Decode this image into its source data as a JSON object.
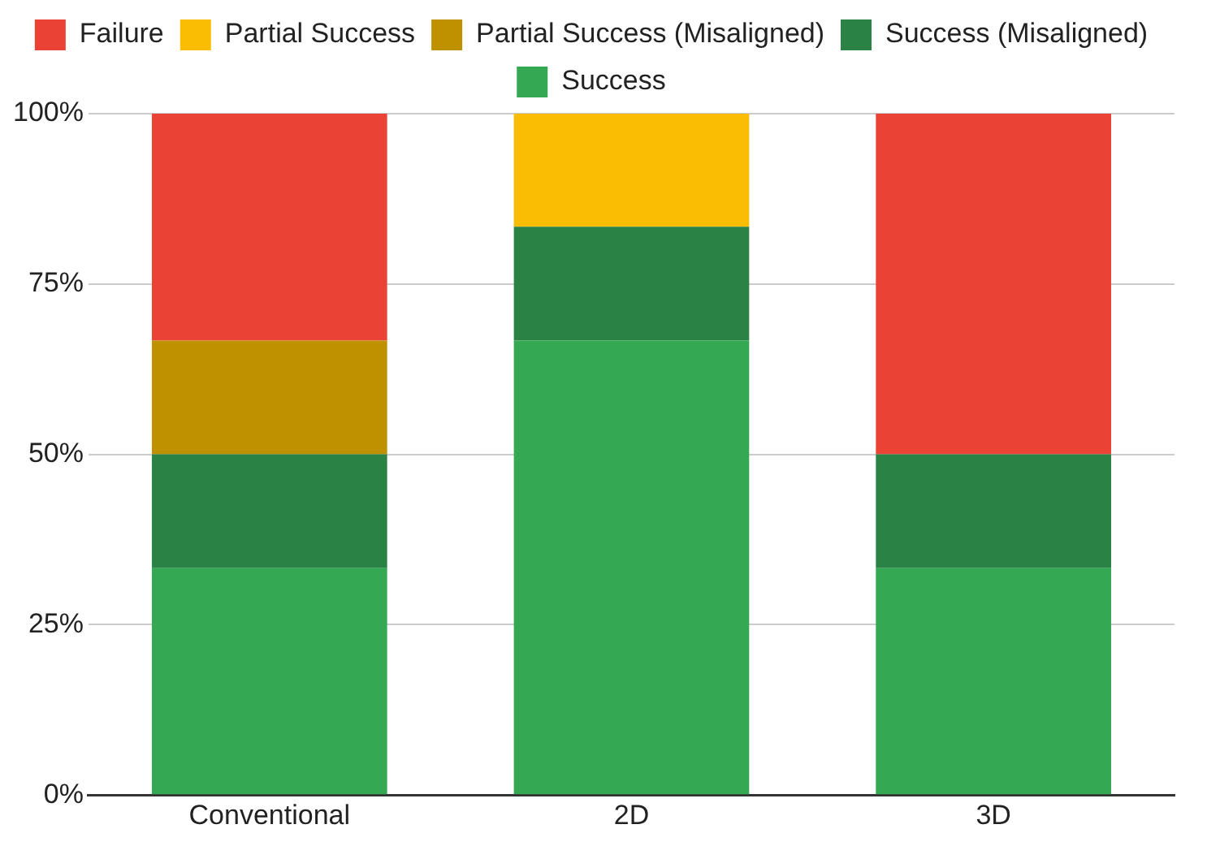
{
  "chart_data": {
    "type": "bar",
    "stacked": true,
    "categories": [
      "Conventional",
      "2D",
      "3D"
    ],
    "series": [
      {
        "name": "Success",
        "color": "#34a853",
        "values": [
          33.3,
          66.7,
          33.3
        ]
      },
      {
        "name": "Success (Misaligned)",
        "color": "#2a8244",
        "values": [
          16.7,
          16.7,
          16.7
        ]
      },
      {
        "name": "Partial Success (Misaligned)",
        "color": "#bf9000",
        "values": [
          16.7,
          0,
          0
        ]
      },
      {
        "name": "Partial Success",
        "color": "#fbbc04",
        "values": [
          0,
          16.7,
          0
        ]
      },
      {
        "name": "Failure",
        "color": "#ea4335",
        "values": [
          33.3,
          0,
          50
        ]
      }
    ],
    "ylim": [
      0,
      100
    ],
    "yticks": [
      {
        "value": 0,
        "label": "0%"
      },
      {
        "value": 25,
        "label": "25%"
      },
      {
        "value": 50,
        "label": "50%"
      },
      {
        "value": 75,
        "label": "75%"
      },
      {
        "value": 100,
        "label": "100%"
      }
    ],
    "grid": "y",
    "legend": "top"
  }
}
